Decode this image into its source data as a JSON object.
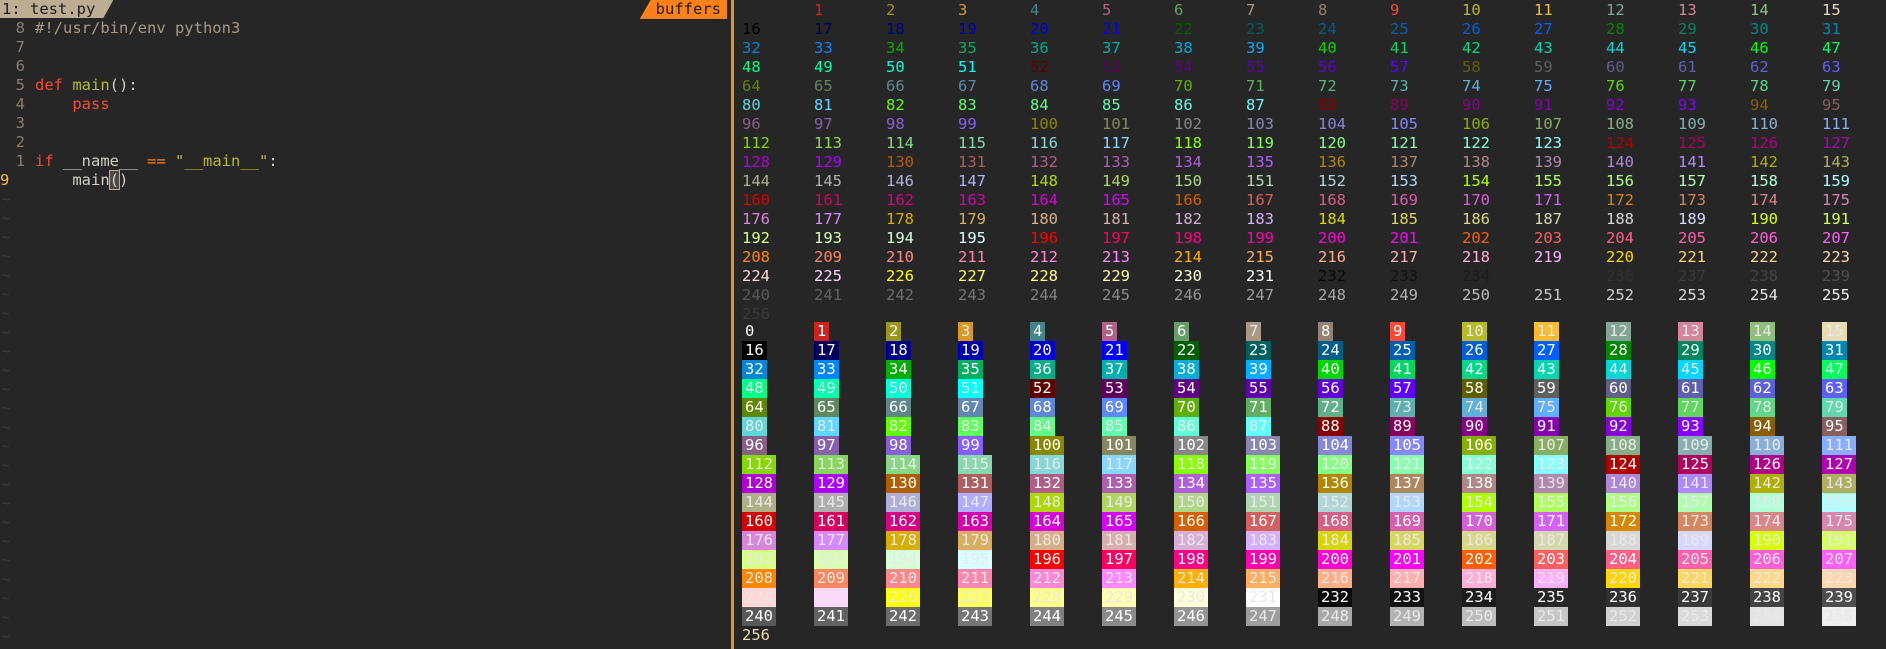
{
  "editor": {
    "tab_label": "1: test.py",
    "buffers_label": "buffers",
    "lines": [
      {
        "num": "8",
        "text": "#!/usr/bin/env python3",
        "kind": "shebang"
      },
      {
        "num": "7",
        "text": "",
        "kind": "blank"
      },
      {
        "num": "6",
        "text": "",
        "kind": "blank"
      },
      {
        "num": "5",
        "kw": "def",
        "name": "main",
        "rest": "():",
        "kind": "def"
      },
      {
        "num": "4",
        "kw": "pass",
        "kind": "pass"
      },
      {
        "num": "3",
        "text": "",
        "kind": "blank"
      },
      {
        "num": "2",
        "text": "",
        "kind": "blank"
      },
      {
        "num": "1",
        "kw": "if",
        "mid": " __name__ ",
        "op": "==",
        "str": " \"__main__\"",
        "rest": ":",
        "kind": "if"
      },
      {
        "num": "9",
        "call": "main",
        "paren_open": "(",
        "paren_close": ")",
        "kind": "call"
      }
    ],
    "tilde": "~"
  },
  "terminal": {
    "fg_grid_max": 255,
    "bg_grid_max": 255,
    "bg_extra": "256",
    "fg_extra": "256",
    "ansi_base": [
      "#262626",
      "#cc241d",
      "#98971a",
      "#d79921",
      "#458588",
      "#b16286",
      "#689d6a",
      "#a89984",
      "#928374",
      "#fb4934",
      "#b8bb26",
      "#fabd2f",
      "#83a598",
      "#d3869b",
      "#8ec07c",
      "#ebdbb2"
    ]
  }
}
